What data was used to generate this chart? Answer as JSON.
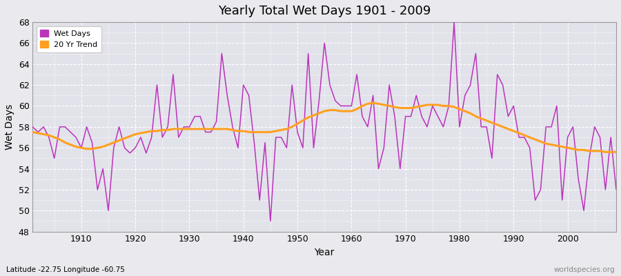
{
  "title": "Yearly Total Wet Days 1901 - 2009",
  "xlabel": "Year",
  "ylabel": "Wet Days",
  "subtitle": "Latitude -22.75 Longitude -60.75",
  "watermark": "worldspecies.org",
  "ylim": [
    48,
    68
  ],
  "yticks": [
    48,
    50,
    52,
    54,
    56,
    58,
    60,
    62,
    64,
    66,
    68
  ],
  "xlim": [
    1901,
    2009
  ],
  "xticks": [
    1910,
    1920,
    1930,
    1940,
    1950,
    1960,
    1970,
    1980,
    1990,
    2000
  ],
  "wet_days_color": "#BB33BB",
  "trend_color": "#FFA020",
  "bg_color": "#EAEAEE",
  "plot_bg_color": "#E2E2EA",
  "wet_days": [
    58,
    57.5,
    58,
    57,
    55,
    58,
    58,
    57.5,
    57,
    56,
    58,
    56.5,
    52,
    54,
    50,
    56,
    58,
    56,
    55.5,
    56,
    57,
    55.5,
    57,
    62,
    57,
    58,
    63,
    57,
    58,
    58,
    59,
    59,
    57.5,
    57.5,
    58.5,
    65,
    61,
    58,
    56,
    62,
    61,
    56.5,
    51,
    56.5,
    49,
    57,
    57,
    56,
    62,
    57.5,
    56,
    65,
    56,
    60.5,
    66,
    62,
    60.5,
    60,
    60,
    60,
    63,
    59,
    58,
    61,
    54,
    56,
    62,
    59,
    54,
    59,
    59,
    61,
    59,
    58,
    60,
    59,
    58,
    60,
    68,
    58,
    61,
    62,
    65,
    58,
    58,
    55,
    63,
    62,
    59,
    60,
    57,
    57,
    56,
    51,
    52,
    58,
    58,
    60,
    51,
    57,
    58,
    53,
    50,
    55,
    58,
    57,
    52,
    57,
    52
  ],
  "trend": [
    57.5,
    57.4,
    57.3,
    57.2,
    57.0,
    56.8,
    56.5,
    56.3,
    56.1,
    56.0,
    55.9,
    55.9,
    56.0,
    56.1,
    56.3,
    56.5,
    56.7,
    56.9,
    57.1,
    57.3,
    57.4,
    57.5,
    57.6,
    57.6,
    57.7,
    57.7,
    57.8,
    57.8,
    57.8,
    57.8,
    57.8,
    57.8,
    57.8,
    57.8,
    57.8,
    57.8,
    57.8,
    57.7,
    57.6,
    57.6,
    57.5,
    57.5,
    57.5,
    57.5,
    57.5,
    57.6,
    57.7,
    57.8,
    58.0,
    58.3,
    58.6,
    58.9,
    59.1,
    59.3,
    59.5,
    59.6,
    59.6,
    59.5,
    59.5,
    59.5,
    59.7,
    60.0,
    60.2,
    60.3,
    60.2,
    60.1,
    60.0,
    59.9,
    59.8,
    59.8,
    59.8,
    59.9,
    60.0,
    60.1,
    60.1,
    60.1,
    60.0,
    60.0,
    59.9,
    59.7,
    59.5,
    59.3,
    59.0,
    58.8,
    58.6,
    58.4,
    58.2,
    58.0,
    57.8,
    57.6,
    57.4,
    57.2,
    57.0,
    56.8,
    56.6,
    56.4,
    56.3,
    56.2,
    56.1,
    56.0,
    55.9,
    55.8,
    55.8,
    55.7,
    55.7,
    55.7,
    55.6,
    55.6,
    55.6
  ]
}
